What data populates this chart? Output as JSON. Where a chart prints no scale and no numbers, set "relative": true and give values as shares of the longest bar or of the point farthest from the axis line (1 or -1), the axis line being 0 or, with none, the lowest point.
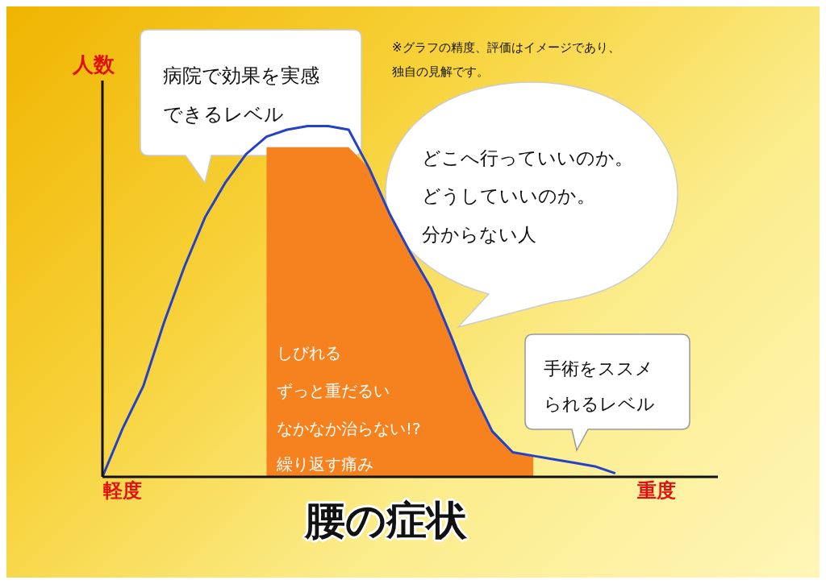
{
  "chart_data": {
    "type": "line",
    "relative": true,
    "ylabel": "人数",
    "xlabel": "腰の症状",
    "marker": "none",
    "categories": [
      null,
      "軽度",
      null,
      null,
      null,
      null,
      null,
      null,
      null,
      null,
      null,
      null,
      null,
      null,
      null,
      null,
      null,
      null,
      null,
      null,
      null,
      null,
      null,
      null,
      null,
      null,
      null,
      "重度",
      null,
      null,
      null
    ],
    "series": [
      {
        "type": "area",
        "color": "#f5821f",
        "values": [
          null,
          null,
          null,
          null,
          null,
          null,
          null,
          null,
          0.94,
          0.94,
          0.94,
          0.94,
          0.94,
          0.88,
          0.75,
          0.64,
          0.54,
          0.4,
          0.25,
          0.13,
          0.07,
          0.06,
          null,
          null,
          null,
          null,
          null,
          null,
          null,
          null,
          null
        ]
      },
      {
        "color": "#2442c8",
        "values": [
          0,
          0.14,
          0.26,
          0.44,
          0.6,
          0.74,
          0.84,
          0.92,
          0.97,
          0.99,
          1,
          1,
          0.99,
          0.88,
          0.75,
          0.64,
          0.54,
          0.4,
          0.25,
          0.13,
          0.07,
          0.06,
          0.05,
          0.04,
          0.03,
          0.01,
          null,
          null,
          null,
          null,
          null
        ]
      }
    ],
    "annotations": [
      "病院で効果を実感できるレベル",
      "どこへ行っていいのか。",
      "どうしていいのか。",
      "分からない人",
      "手術をススメられるレベル",
      "※グラフの精度、評価はイメージであり、独自の見解です。",
      "しびれる",
      "ずっと重だるい",
      "なかなか治らない!?",
      "繰り返す痛み"
    ]
  }
}
